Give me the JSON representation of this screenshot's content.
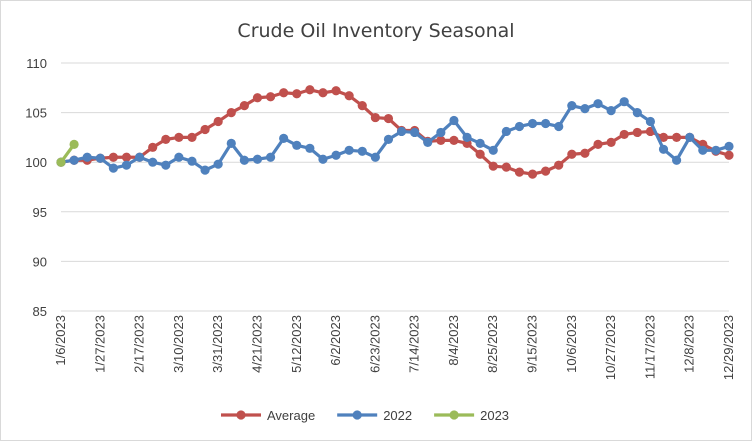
{
  "chart_data": {
    "type": "line",
    "title": "Crude Oil Inventory Seasonal",
    "xlabel": "",
    "ylabel": "",
    "ylim": [
      85,
      110
    ],
    "yticks": [
      85,
      90,
      95,
      100,
      105,
      110
    ],
    "grid": "horizontal",
    "legend_position": "bottom",
    "x_tick_labels": [
      "1/6/2023",
      "1/27/2023",
      "2/17/2023",
      "3/10/2023",
      "3/31/2023",
      "4/21/2023",
      "5/12/2023",
      "6/2/2023",
      "6/23/2023",
      "7/14/2023",
      "8/4/2023",
      "8/25/2023",
      "9/15/2023",
      "10/6/2023",
      "10/27/2023",
      "11/17/2023",
      "12/8/2023",
      "12/29/2023"
    ],
    "x_tick_step_weeks": 3,
    "series": [
      {
        "name": "Average",
        "color": "#c0504d",
        "values": [
          100.0,
          100.2,
          100.2,
          100.4,
          100.5,
          100.5,
          100.5,
          101.5,
          102.3,
          102.5,
          102.5,
          103.3,
          104.1,
          105.0,
          105.7,
          106.5,
          106.6,
          107.0,
          106.9,
          107.3,
          107.0,
          107.2,
          106.7,
          105.7,
          104.5,
          104.4,
          103.2,
          103.2,
          102.1,
          102.2,
          102.2,
          101.9,
          100.8,
          99.6,
          99.5,
          99.0,
          98.8,
          99.1,
          99.7,
          100.8,
          100.9,
          101.8,
          102.0,
          102.8,
          103.0,
          103.1,
          102.5,
          102.5,
          102.5,
          101.8,
          101.1,
          100.7
        ]
      },
      {
        "name": "2022",
        "color": "#4f81bd",
        "values": [
          100.0,
          100.2,
          100.5,
          100.4,
          99.4,
          99.7,
          100.5,
          100.0,
          99.7,
          100.5,
          100.1,
          99.2,
          99.8,
          101.9,
          100.2,
          100.3,
          100.5,
          102.4,
          101.7,
          101.4,
          100.3,
          100.7,
          101.2,
          101.1,
          100.5,
          102.3,
          103.1,
          103.0,
          102.0,
          103.0,
          104.2,
          102.5,
          101.9,
          101.2,
          103.1,
          103.6,
          103.9,
          103.9,
          103.6,
          105.7,
          105.4,
          105.9,
          105.2,
          106.1,
          105.0,
          104.1,
          101.3,
          100.2,
          102.5,
          101.2,
          101.2,
          101.6
        ]
      },
      {
        "name": "2023",
        "color": "#9bbb59",
        "values": [
          100.0,
          101.8
        ]
      }
    ]
  }
}
